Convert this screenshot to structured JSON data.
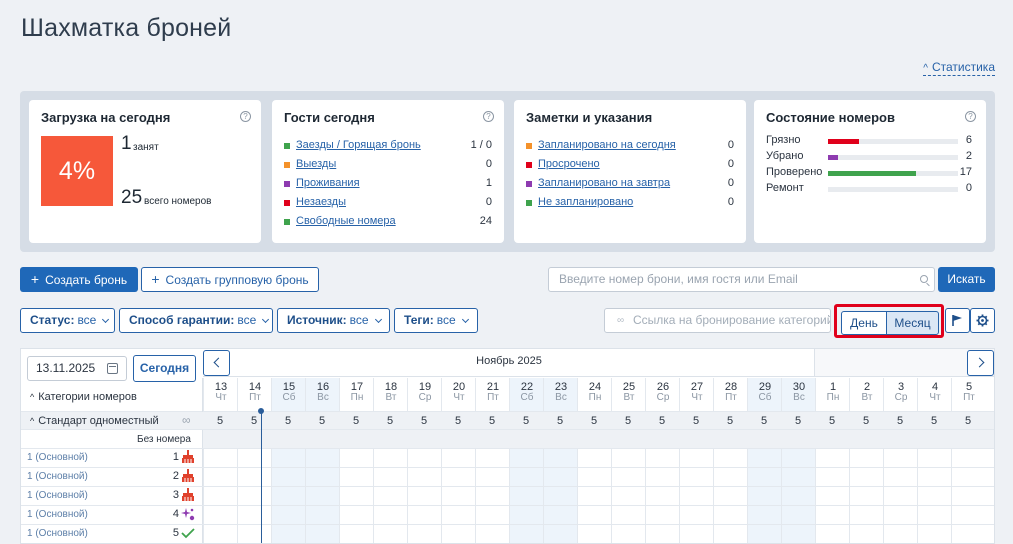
{
  "page": {
    "title": "Шахматка броней",
    "stats_link": "Статистика"
  },
  "cards": {
    "load": {
      "title": "Загрузка на сегодня",
      "percent": "4%",
      "occupied": "1",
      "occupied_label": "занят",
      "total": "25",
      "total_label": "всего номеров"
    },
    "guests": {
      "title": "Гости сегодня",
      "items": [
        {
          "label": "Заезды / Горящая бронь",
          "value": "1 / 0",
          "color": "#3fa34d"
        },
        {
          "label": "Выезды",
          "value": "0",
          "color": "#f4922b"
        },
        {
          "label": "Проживания",
          "value": "1",
          "color": "#8e3bb0"
        },
        {
          "label": "Незаезды",
          "value": "0",
          "color": "#e0001b"
        },
        {
          "label": "Свободные номера",
          "value": "24",
          "color": "#3fa34d"
        }
      ]
    },
    "notes": {
      "title": "Заметки и указания",
      "items": [
        {
          "label": "Запланировано на сегодня",
          "value": "0",
          "color": "#f4922b"
        },
        {
          "label": "Просрочено",
          "value": "0",
          "color": "#e0001b"
        },
        {
          "label": "Запланировано на завтра",
          "value": "0",
          "color": "#8e3bb0"
        },
        {
          "label": "Не запланировано",
          "value": "0",
          "color": "#3fa34d"
        }
      ]
    },
    "rooms": {
      "title": "Состояние номеров",
      "items": [
        {
          "label": "Грязно",
          "value": "6",
          "fill": 0.24,
          "color": "#e0001b"
        },
        {
          "label": "Убрано",
          "value": "2",
          "fill": 0.08,
          "color": "#8e3bb0"
        },
        {
          "label": "Проверено",
          "value": "17",
          "fill": 0.68,
          "color": "#3fa34d"
        },
        {
          "label": "Ремонт",
          "value": "0",
          "fill": 0,
          "color": "#3fa34d"
        }
      ]
    }
  },
  "actions": {
    "create": "Создать бронь",
    "create_group": "Создать групповую бронь",
    "search_placeholder": "Введите номер брони, имя гостя или Email",
    "search_btn": "Искать"
  },
  "filters": [
    {
      "name": "Статус:",
      "value": "все"
    },
    {
      "name": "Способ гарантии:",
      "value": "все"
    },
    {
      "name": "Источник:",
      "value": "все"
    },
    {
      "name": "Теги:",
      "value": "все"
    }
  ],
  "booking_link": "Ссылка на бронирование категорий",
  "view": {
    "day": "День",
    "month": "Месяц"
  },
  "grid": {
    "date": "13.11.2025",
    "today_btn": "Сегодня",
    "categories_label": "Категории номеров",
    "month": "Ноябрь 2025",
    "days": [
      {
        "n": "13",
        "w": "Чт"
      },
      {
        "n": "14",
        "w": "Пт"
      },
      {
        "n": "15",
        "w": "Сб"
      },
      {
        "n": "16",
        "w": "Вс"
      },
      {
        "n": "17",
        "w": "Пн"
      },
      {
        "n": "18",
        "w": "Вт"
      },
      {
        "n": "19",
        "w": "Ср"
      },
      {
        "n": "20",
        "w": "Чт"
      },
      {
        "n": "21",
        "w": "Пт"
      },
      {
        "n": "22",
        "w": "Сб"
      },
      {
        "n": "23",
        "w": "Вс"
      },
      {
        "n": "24",
        "w": "Пн"
      },
      {
        "n": "25",
        "w": "Вт"
      },
      {
        "n": "26",
        "w": "Ср"
      },
      {
        "n": "27",
        "w": "Чт"
      },
      {
        "n": "28",
        "w": "Пт"
      },
      {
        "n": "29",
        "w": "Сб"
      },
      {
        "n": "30",
        "w": "Вс"
      },
      {
        "n": "1",
        "w": "Пн"
      },
      {
        "n": "2",
        "w": "Вт"
      },
      {
        "n": "3",
        "w": "Ср"
      },
      {
        "n": "4",
        "w": "Чт"
      },
      {
        "n": "5",
        "w": "Пт"
      }
    ],
    "category": "Стандарт одноместный",
    "availability": [
      "5",
      "5",
      "5",
      "5",
      "5",
      "5",
      "5",
      "5",
      "5",
      "5",
      "5",
      "5",
      "5",
      "5",
      "5",
      "5",
      "5",
      "5",
      "5",
      "5",
      "5",
      "5",
      "5"
    ],
    "no_room": "Без номера",
    "rooms": [
      {
        "label": "1 (Основной)",
        "num": "1",
        "status": "broom-icon"
      },
      {
        "label": "1 (Основной)",
        "num": "2",
        "status": "broom-icon"
      },
      {
        "label": "1 (Основной)",
        "num": "3",
        "status": "broom-icon"
      },
      {
        "label": "1 (Основной)",
        "num": "4",
        "status": "sparkle-icon"
      },
      {
        "label": "1 (Основной)",
        "num": "5",
        "status": "check-icon"
      }
    ]
  }
}
